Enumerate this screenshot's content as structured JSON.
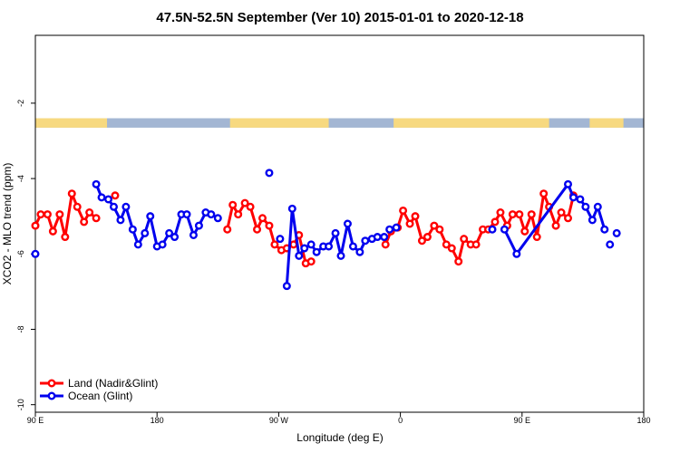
{
  "chart_data": {
    "type": "line",
    "title": "47.5N-52.5N September (Ver 10)   2015-01-01 to 2020-12-18",
    "xlabel": "Longitude (deg E)",
    "ylabel": "XCO2 - MLO trend (ppm)",
    "x_ticks": [
      {
        "label": "90 E",
        "value": 90
      },
      {
        "label": "180",
        "value": 180
      },
      {
        "label": "90 W",
        "value": 270
      },
      {
        "label": "0",
        "value": 360
      },
      {
        "label": "90 E",
        "value": 450
      },
      {
        "label": "180",
        "value": 540
      }
    ],
    "y_ticks": [
      -2,
      -4,
      -6,
      -8,
      -10
    ],
    "xlim": [
      90,
      540
    ],
    "ylim": [
      -10.2,
      -0.2
    ],
    "land_ocean_strip": {
      "y_range": [
        -2.4,
        -2.65
      ],
      "land_color": "#f7d980",
      "ocean_color": "#a3b6d3",
      "land_segments": [
        [
          90,
          143
        ],
        [
          234,
          307
        ],
        [
          355,
          470
        ],
        [
          500,
          525
        ]
      ]
    },
    "series": [
      {
        "name": "Land (Nadir&Glint)",
        "color": "#ff0000",
        "points": [
          [
            90,
            -5.25
          ],
          [
            94,
            -4.95
          ],
          [
            99,
            -4.95
          ],
          [
            103,
            -5.4
          ],
          [
            108,
            -4.95
          ],
          [
            112,
            -5.55
          ],
          [
            117,
            -4.4
          ],
          [
            121,
            -4.75
          ],
          [
            126,
            -5.15
          ],
          [
            130,
            -4.9
          ],
          [
            135,
            -5.05
          ],
          [
            149,
            -4.45
          ],
          [
            232,
            -5.35
          ],
          [
            236,
            -4.7
          ],
          [
            240,
            -4.95
          ],
          [
            245,
            -4.65
          ],
          [
            249,
            -4.75
          ],
          [
            254,
            -5.35
          ],
          [
            258,
            -5.05
          ],
          [
            263,
            -5.25
          ],
          [
            267,
            -5.75
          ],
          [
            272,
            -5.9
          ],
          [
            276,
            -5.85
          ],
          [
            281,
            -5.75
          ],
          [
            285,
            -5.5
          ],
          [
            290,
            -6.25
          ],
          [
            294,
            -6.2
          ],
          [
            349,
            -5.75
          ],
          [
            353,
            -5.4
          ],
          [
            358,
            -5.3
          ],
          [
            362,
            -4.85
          ],
          [
            367,
            -5.2
          ],
          [
            371,
            -5.0
          ],
          [
            376,
            -5.65
          ],
          [
            380,
            -5.55
          ],
          [
            385,
            -5.25
          ],
          [
            389,
            -5.35
          ],
          [
            394,
            -5.75
          ],
          [
            398,
            -5.85
          ],
          [
            403,
            -6.2
          ],
          [
            407,
            -5.6
          ],
          [
            412,
            -5.75
          ],
          [
            416,
            -5.75
          ],
          [
            421,
            -5.35
          ],
          [
            425,
            -5.35
          ],
          [
            430,
            -5.15
          ],
          [
            434,
            -4.9
          ],
          [
            439,
            -5.25
          ],
          [
            443,
            -4.95
          ],
          [
            448,
            -4.95
          ],
          [
            452,
            -5.4
          ],
          [
            457,
            -4.95
          ],
          [
            461,
            -5.55
          ],
          [
            466,
            -4.4
          ],
          [
            470,
            -4.75
          ],
          [
            475,
            -5.25
          ],
          [
            479,
            -4.9
          ],
          [
            484,
            -5.05
          ],
          [
            488,
            -4.45
          ]
        ]
      },
      {
        "name": "Ocean (Glint)",
        "color": "#0000ee",
        "points": [
          [
            90,
            -6.0
          ],
          [
            135,
            -4.15
          ],
          [
            139,
            -4.5
          ],
          [
            144,
            -4.55
          ],
          [
            148,
            -4.75
          ],
          [
            153,
            -5.1
          ],
          [
            157,
            -4.75
          ],
          [
            162,
            -5.35
          ],
          [
            166,
            -5.75
          ],
          [
            171,
            -5.45
          ],
          [
            175,
            -5.0
          ],
          [
            180,
            -5.8
          ],
          [
            184,
            -5.75
          ],
          [
            189,
            -5.45
          ],
          [
            193,
            -5.55
          ],
          [
            198,
            -4.95
          ],
          [
            202,
            -4.95
          ],
          [
            207,
            -5.5
          ],
          [
            211,
            -5.25
          ],
          [
            216,
            -4.9
          ],
          [
            220,
            -4.95
          ],
          [
            225,
            -5.05
          ],
          [
            263,
            -3.85
          ],
          [
            271,
            -5.6
          ],
          [
            276,
            -6.85
          ],
          [
            280,
            -4.8
          ],
          [
            285,
            -6.05
          ],
          [
            289,
            -5.85
          ],
          [
            294,
            -5.75
          ],
          [
            298,
            -5.95
          ],
          [
            303,
            -5.8
          ],
          [
            307,
            -5.8
          ],
          [
            312,
            -5.45
          ],
          [
            316,
            -6.05
          ],
          [
            321,
            -5.2
          ],
          [
            325,
            -5.8
          ],
          [
            330,
            -5.95
          ],
          [
            334,
            -5.65
          ],
          [
            339,
            -5.6
          ],
          [
            343,
            -5.55
          ],
          [
            348,
            -5.55
          ],
          [
            352,
            -5.35
          ],
          [
            357,
            -5.3
          ],
          [
            428,
            -5.35
          ],
          [
            437,
            -5.35
          ],
          [
            446,
            -6.0
          ],
          [
            484,
            -4.15
          ],
          [
            488,
            -4.5
          ],
          [
            493,
            -4.55
          ],
          [
            497,
            -4.75
          ],
          [
            502,
            -5.1
          ],
          [
            506,
            -4.75
          ],
          [
            511,
            -5.35
          ],
          [
            515,
            -5.75
          ],
          [
            520,
            -5.45
          ]
        ],
        "line_segments": [
          [
            1,
            21
          ],
          [
            24,
            40
          ],
          [
            44,
            52
          ]
        ]
      }
    ],
    "land_line_segments": [
      [
        0,
        10
      ],
      [
        12,
        26
      ],
      [
        27,
        59
      ]
    ],
    "legend": {
      "position": "bottom-left"
    },
    "grid": false
  }
}
